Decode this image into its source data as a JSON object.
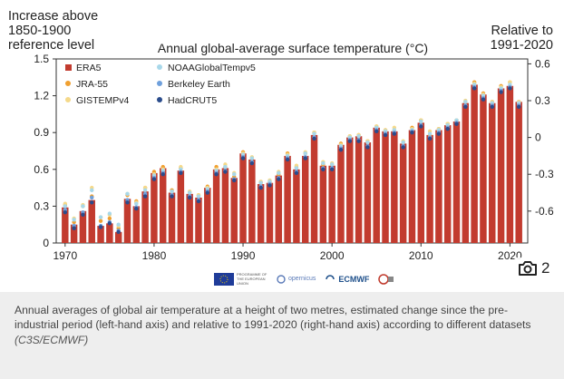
{
  "chart_data": {
    "type": "bar",
    "title": "Annual global-average surface temperature (°C)",
    "left_axis_label": [
      "Increase above",
      "1850-1900",
      "reference level"
    ],
    "right_axis_label": [
      "Relative to",
      "1991-2020"
    ],
    "x_ticks": [
      "1970",
      "1980",
      "1990",
      "2000",
      "2010",
      "2020"
    ],
    "y_ticks_left": [
      "0",
      "0.3",
      "0.6",
      "0.9",
      "1.2",
      "1.5"
    ],
    "y_ticks_right": [
      "-0.6",
      "-0.3",
      "0",
      "0.3",
      "0.6"
    ],
    "ylim_left": [
      0,
      1.5
    ],
    "ylim_right": [
      -0.86,
      0.64
    ],
    "x": [
      1970,
      1971,
      1972,
      1973,
      1974,
      1975,
      1976,
      1977,
      1978,
      1979,
      1980,
      1981,
      1982,
      1983,
      1984,
      1985,
      1986,
      1987,
      1988,
      1989,
      1990,
      1991,
      1992,
      1993,
      1994,
      1995,
      1996,
      1997,
      1998,
      1999,
      2000,
      2001,
      2002,
      2003,
      2004,
      2005,
      2006,
      2007,
      2008,
      2009,
      2010,
      2011,
      2012,
      2013,
      2014,
      2015,
      2016,
      2017,
      2018,
      2019,
      2020,
      2021
    ],
    "series": [
      {
        "name": "ERA5",
        "color": "#c23b2f",
        "values": [
          0.29,
          0.15,
          0.26,
          0.35,
          0.14,
          0.16,
          0.09,
          0.36,
          0.3,
          0.42,
          0.57,
          0.61,
          0.41,
          0.59,
          0.4,
          0.37,
          0.45,
          0.6,
          0.61,
          0.53,
          0.73,
          0.68,
          0.48,
          0.49,
          0.55,
          0.71,
          0.6,
          0.71,
          0.88,
          0.63,
          0.63,
          0.8,
          0.86,
          0.87,
          0.82,
          0.94,
          0.91,
          0.91,
          0.81,
          0.92,
          0.98,
          0.88,
          0.92,
          0.96,
          0.99,
          1.14,
          1.29,
          1.21,
          1.14,
          1.26,
          1.28,
          1.15
        ]
      },
      {
        "name": "JRA-55",
        "color": "#f0a030",
        "values": [
          0.31,
          0.17,
          0.3,
          0.38,
          0.18,
          0.2,
          0.12,
          0.39,
          0.34,
          0.45,
          0.58,
          0.62,
          0.43,
          0.61,
          0.41,
          0.39,
          0.46,
          0.62,
          0.62,
          0.54,
          0.74,
          0.69,
          0.49,
          0.5,
          0.56,
          0.73,
          0.62,
          0.73,
          0.9,
          0.64,
          0.64,
          0.81,
          0.87,
          0.88,
          0.83,
          0.95,
          0.92,
          0.92,
          0.82,
          0.94,
          1.0,
          0.88,
          0.93,
          0.97,
          1.0,
          1.15,
          1.31,
          1.22,
          1.15,
          1.28,
          1.31,
          1.15
        ]
      },
      {
        "name": "GISTEMPv4",
        "color": "#f5d98a",
        "values": [
          0.32,
          0.2,
          0.31,
          0.45,
          0.21,
          0.23,
          0.14,
          0.4,
          0.33,
          0.45,
          0.56,
          0.6,
          0.42,
          0.62,
          0.42,
          0.39,
          0.45,
          0.6,
          0.64,
          0.57,
          0.73,
          0.7,
          0.5,
          0.51,
          0.58,
          0.72,
          0.63,
          0.74,
          0.9,
          0.66,
          0.65,
          0.8,
          0.87,
          0.88,
          0.83,
          0.95,
          0.92,
          0.94,
          0.83,
          0.93,
          1.0,
          0.91,
          0.93,
          0.97,
          1.0,
          1.16,
          1.3,
          1.21,
          1.15,
          1.27,
          1.31,
          1.15
        ]
      },
      {
        "name": "NOAAGlobalTempv5",
        "color": "#a8d8ea",
        "values": [
          0.3,
          0.19,
          0.3,
          0.43,
          0.21,
          0.24,
          0.15,
          0.4,
          0.32,
          0.43,
          0.55,
          0.59,
          0.42,
          0.6,
          0.41,
          0.38,
          0.44,
          0.59,
          0.62,
          0.56,
          0.72,
          0.69,
          0.49,
          0.5,
          0.57,
          0.71,
          0.61,
          0.73,
          0.89,
          0.65,
          0.64,
          0.79,
          0.86,
          0.87,
          0.82,
          0.94,
          0.91,
          0.92,
          0.82,
          0.92,
          0.99,
          0.89,
          0.92,
          0.96,
          1.0,
          1.15,
          1.29,
          1.2,
          1.14,
          1.26,
          1.29,
          1.14
        ]
      },
      {
        "name": "Berkeley Earth",
        "color": "#6fa0dc",
        "values": [
          0.27,
          0.14,
          0.25,
          0.37,
          0.14,
          0.17,
          0.1,
          0.35,
          0.29,
          0.4,
          0.53,
          0.57,
          0.39,
          0.58,
          0.38,
          0.35,
          0.42,
          0.57,
          0.59,
          0.52,
          0.7,
          0.66,
          0.46,
          0.48,
          0.53,
          0.69,
          0.58,
          0.7,
          0.86,
          0.61,
          0.61,
          0.77,
          0.84,
          0.84,
          0.79,
          0.92,
          0.89,
          0.9,
          0.79,
          0.91,
          0.96,
          0.86,
          0.9,
          0.94,
          0.98,
          1.12,
          1.27,
          1.18,
          1.12,
          1.24,
          1.27,
          1.12
        ]
      },
      {
        "name": "HadCRUT5",
        "color": "#2b4c8c",
        "values": [
          0.25,
          0.12,
          0.23,
          0.33,
          0.13,
          0.16,
          0.09,
          0.33,
          0.28,
          0.38,
          0.52,
          0.56,
          0.38,
          0.57,
          0.37,
          0.34,
          0.41,
          0.56,
          0.58,
          0.51,
          0.69,
          0.65,
          0.45,
          0.47,
          0.52,
          0.68,
          0.57,
          0.69,
          0.85,
          0.6,
          0.6,
          0.76,
          0.83,
          0.83,
          0.78,
          0.91,
          0.88,
          0.89,
          0.78,
          0.9,
          0.95,
          0.85,
          0.89,
          0.93,
          0.97,
          1.11,
          1.26,
          1.17,
          1.11,
          1.23,
          1.26,
          1.11
        ]
      }
    ],
    "legend_position": "top-left",
    "grid": false
  },
  "photo_badge": {
    "icon": "camera-icon",
    "count": "2"
  },
  "logos": [
    {
      "name": "eu-logo",
      "text": "PROGRAMME OF THE EUROPEAN UNION"
    },
    {
      "name": "copernicus-logo",
      "text": "opernicus"
    },
    {
      "name": "ecmwf-logo",
      "text": "ECMWF"
    },
    {
      "name": "c3s-logo",
      "text": ""
    }
  ],
  "caption": {
    "text": "Annual averages of global air temperature at a height of two metres, estimated change since the pre-industrial period (left-hand axis) and relative to 1991-2020 (right-hand axis) according to different datasets",
    "credit": "(C3S/ECMWF)"
  }
}
